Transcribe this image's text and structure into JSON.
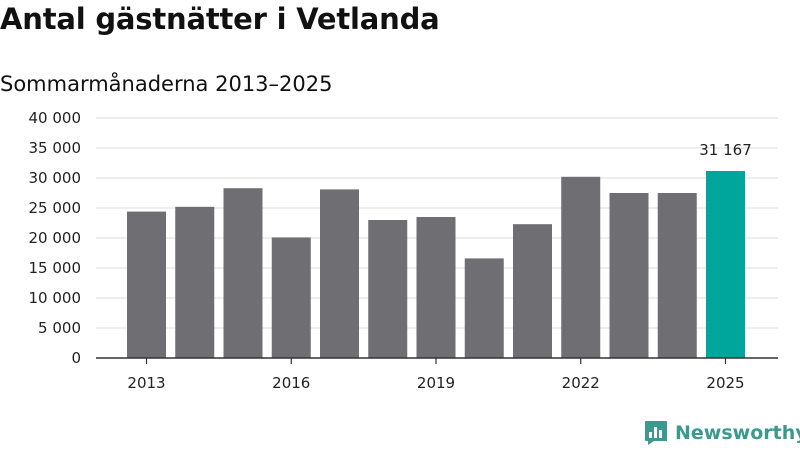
{
  "title": "Antal gästnätter i Vetlanda",
  "subtitle": "Sommarmånaderna 2013–2025",
  "brand": {
    "name": "Newsworthy",
    "color": "#3a9a8e",
    "icon": "newsworthy-logo-icon"
  },
  "colors": {
    "bar": "#6e6e73",
    "highlight": "#00a69c",
    "grid": "#dddddd",
    "axis": "#333333"
  },
  "chart_data": {
    "type": "bar",
    "title": "Antal gästnätter i Vetlanda",
    "subtitle": "Sommarmånaderna 2013–2025",
    "categories": [
      "2013",
      "2014",
      "2015",
      "2016",
      "2017",
      "2018",
      "2019",
      "2020",
      "2021",
      "2022",
      "2023",
      "2024",
      "2025"
    ],
    "values": [
      24400,
      25200,
      28300,
      20100,
      28100,
      23000,
      23500,
      16600,
      22300,
      30200,
      27500,
      27500,
      31167
    ],
    "highlight_index": 12,
    "data_labels": [
      {
        "index": 12,
        "text": "31 167"
      }
    ],
    "x_tick_labels": [
      "2013",
      "2016",
      "2019",
      "2022",
      "2025"
    ],
    "y_tick_labels": [
      "0",
      "5 000",
      "10 000",
      "15 000",
      "20 000",
      "25 000",
      "30 000",
      "35 000",
      "40 000"
    ],
    "y_ticks": [
      0,
      5000,
      10000,
      15000,
      20000,
      25000,
      30000,
      35000,
      40000
    ],
    "ylim": [
      0,
      40000
    ],
    "xlabel": "",
    "ylabel": "",
    "grid": true,
    "legend": "none"
  }
}
